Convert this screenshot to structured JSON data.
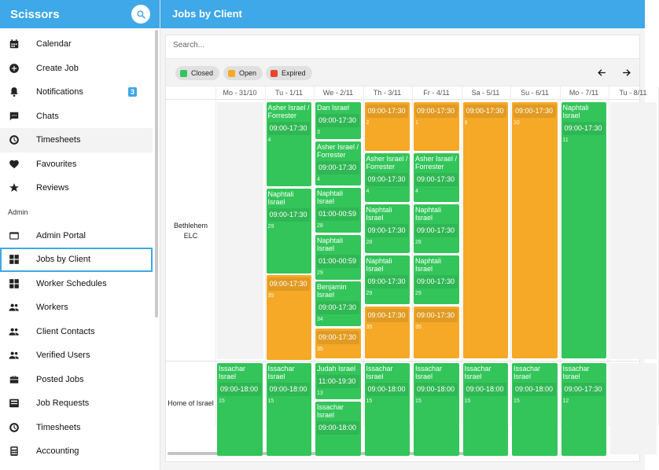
{
  "app": {
    "title": "Scissors"
  },
  "page": {
    "title": "Jobs by Client"
  },
  "sidebar": {
    "items": [
      {
        "label": "Calendar",
        "icon": "calendar-icon"
      },
      {
        "label": "Create Job",
        "icon": "add-circle-icon"
      },
      {
        "label": "Notifications",
        "icon": "bell-icon",
        "badge": "3"
      },
      {
        "label": "Chats",
        "icon": "chat-icon"
      },
      {
        "label": "Timesheets",
        "icon": "clock-icon"
      },
      {
        "label": "Favourites",
        "icon": "heart-icon"
      },
      {
        "label": "Reviews",
        "icon": "star-icon"
      }
    ],
    "section_label": "Admin",
    "admin_items": [
      {
        "label": "Admin Portal",
        "icon": "portal-icon"
      },
      {
        "label": "Jobs by Client",
        "icon": "grid-icon"
      },
      {
        "label": "Worker Schedules",
        "icon": "grid-icon"
      },
      {
        "label": "Workers",
        "icon": "people-icon"
      },
      {
        "label": "Client Contacts",
        "icon": "people-icon"
      },
      {
        "label": "Verified Users",
        "icon": "people-icon"
      },
      {
        "label": "Posted Jobs",
        "icon": "briefcase-icon"
      },
      {
        "label": "Job Requests",
        "icon": "inbox-icon"
      },
      {
        "label": "Timesheets",
        "icon": "clock-icon"
      },
      {
        "label": "Accounting",
        "icon": "calculator-icon"
      }
    ]
  },
  "search": {
    "placeholder": "Search..."
  },
  "legend": [
    {
      "label": "Closed",
      "color": "#33c55a"
    },
    {
      "label": "Open",
      "color": "#f5a927"
    },
    {
      "label": "Expired",
      "color": "#e8452c"
    }
  ],
  "days": [
    "Mo - 31/10",
    "Tu - 1/11",
    "We - 2/11",
    "Th - 3/11",
    "Fr - 4/11",
    "Sa - 5/11",
    "Su - 6/11",
    "Mo - 7/11",
    "Tu - 8/11"
  ],
  "clients": [
    {
      "name": "Bethlehem ELC",
      "jobs": [
        {
          "day": 1,
          "status": "closed",
          "worker": "Asher Israel / Forrester",
          "time": "09:00-17:30",
          "count": "4"
        },
        {
          "day": 1,
          "status": "closed",
          "worker": "Naphtali Israel",
          "time": "09:00-17:30",
          "count": "29"
        },
        {
          "day": 1,
          "status": "open",
          "worker": "",
          "time": "09:00-17:30",
          "count": "35"
        },
        {
          "day": 2,
          "status": "closed",
          "worker": "Dan Israel",
          "time": "09:00-17:30",
          "count": "3"
        },
        {
          "day": 2,
          "status": "closed",
          "worker": "Asher Israel / Forrester",
          "time": "09:00-17:30",
          "count": "4"
        },
        {
          "day": 2,
          "status": "closed",
          "worker": "Naphtali Israel",
          "time": "01:00-00:59",
          "count": "28"
        },
        {
          "day": 2,
          "status": "closed",
          "worker": "Naphtali Israel",
          "time": "01:00-00:59",
          "count": "29"
        },
        {
          "day": 2,
          "status": "closed",
          "worker": "Benjamin Israel",
          "time": "09:00-17:30",
          "count": "34"
        },
        {
          "day": 2,
          "status": "open",
          "worker": "",
          "time": "09:00-17:30",
          "count": "35"
        },
        {
          "day": 3,
          "status": "open",
          "worker": "",
          "time": "09:00-17:30",
          "count": "2"
        },
        {
          "day": 3,
          "status": "closed",
          "worker": "Asher Israel / Forrester",
          "time": "09:00-17:30",
          "count": "4"
        },
        {
          "day": 3,
          "status": "closed",
          "worker": "Naphtali Israel",
          "time": "09:00-17:30",
          "count": "28"
        },
        {
          "day": 3,
          "status": "closed",
          "worker": "Naphtali Israel",
          "time": "09:00-17:30",
          "count": "29"
        },
        {
          "day": 3,
          "status": "open",
          "worker": "",
          "time": "09:00-17:30",
          "count": "35"
        },
        {
          "day": 4,
          "status": "open",
          "worker": "",
          "time": "09:00-17:30",
          "count": "1"
        },
        {
          "day": 4,
          "status": "closed",
          "worker": "Asher Israel / Forrester",
          "time": "09:00-17:30",
          "count": "4"
        },
        {
          "day": 4,
          "status": "closed",
          "worker": "Naphtali Israel",
          "time": "09:00-17:30",
          "count": "28"
        },
        {
          "day": 4,
          "status": "closed",
          "worker": "Naphtali Israel",
          "time": "09:00-17:30",
          "count": "29"
        },
        {
          "day": 4,
          "status": "open",
          "worker": "",
          "time": "09:00-17:30",
          "count": "35"
        },
        {
          "day": 5,
          "status": "open",
          "worker": "",
          "time": "09:00-17:30",
          "count": "9"
        },
        {
          "day": 6,
          "status": "open",
          "worker": "",
          "time": "09:00-17:30",
          "count": "10"
        },
        {
          "day": 7,
          "status": "closed",
          "worker": "Naphtali Israel",
          "time": "09:00-17:30",
          "count": "11"
        }
      ]
    },
    {
      "name": "Home of Israel",
      "jobs": [
        {
          "day": 0,
          "status": "closed",
          "worker": "Issachar Israel",
          "time": "09:00-18:00",
          "count": "15"
        },
        {
          "day": 1,
          "status": "closed",
          "worker": "Issachar Israel",
          "time": "09:00-18:00",
          "count": "15"
        },
        {
          "day": 2,
          "status": "closed",
          "worker": "Judah Israel",
          "time": "11:00-19:30",
          "count": "13"
        },
        {
          "day": 2,
          "status": "closed",
          "worker": "Issachar Israel",
          "time": "09:00-18:00",
          "count": ""
        },
        {
          "day": 3,
          "status": "closed",
          "worker": "Issachar Israel",
          "time": "09:00-18:00",
          "count": "15"
        },
        {
          "day": 4,
          "status": "closed",
          "worker": "Issachar Israel",
          "time": "09:00-18:00",
          "count": "15"
        },
        {
          "day": 5,
          "status": "closed",
          "worker": "Issachar Israel",
          "time": "09:00-18:00",
          "count": "15"
        },
        {
          "day": 6,
          "status": "closed",
          "worker": "Issachar Israel",
          "time": "09:00-18:00",
          "count": "15"
        },
        {
          "day": 7,
          "status": "closed",
          "worker": "Issachar Israel",
          "time": "09:00-17:30",
          "count": "12"
        }
      ]
    }
  ]
}
